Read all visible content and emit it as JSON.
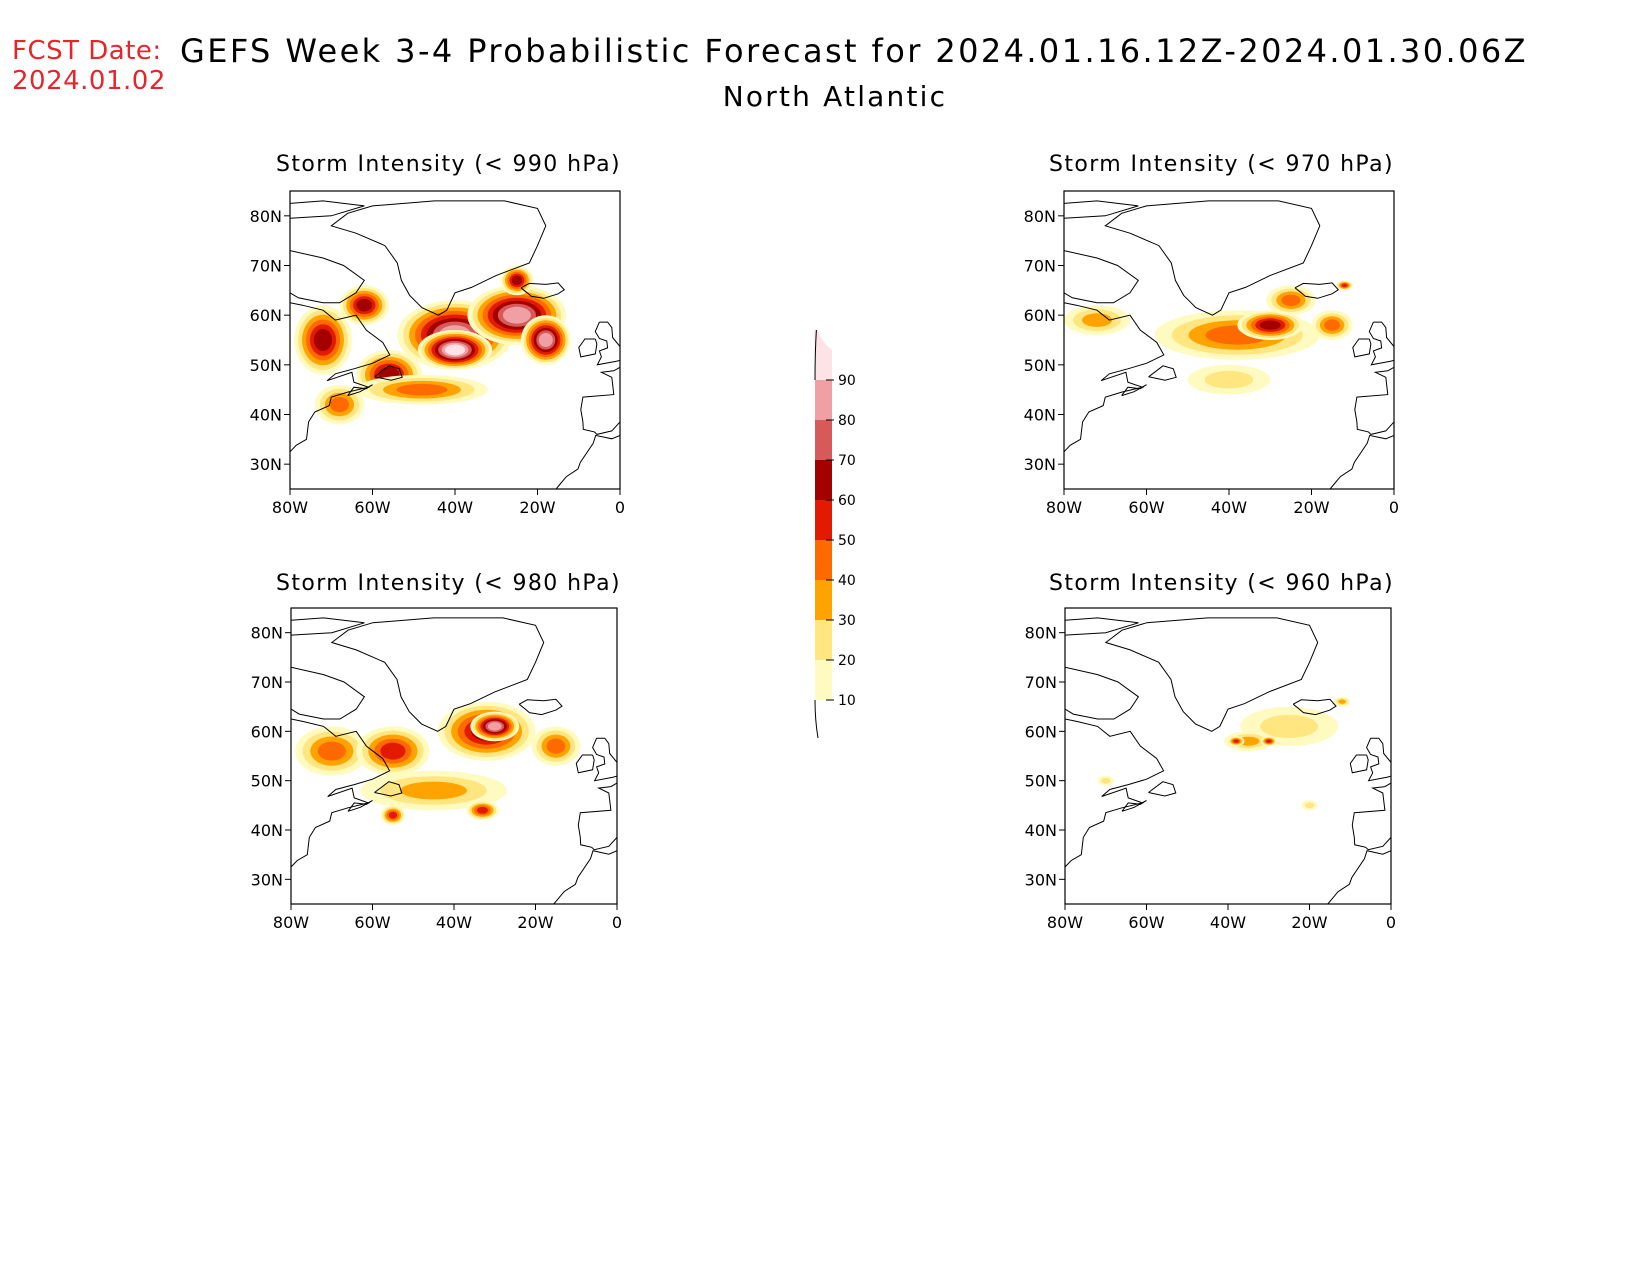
{
  "header": {
    "fcst_label": "FCST Date:",
    "fcst_date": "2024.01.02",
    "title": "GEFS Week 3-4 Probabilistic Forecast for 2024.01.16.12Z-2024.01.30.06Z",
    "subtitle": "North Atlantic"
  },
  "axes": {
    "lon_ticks": [
      "80W",
      "60W",
      "40W",
      "20W",
      "0"
    ],
    "lat_ticks": [
      "80N",
      "70N",
      "60N",
      "50N",
      "40N",
      "30N"
    ],
    "lon_range": [
      -80,
      0
    ],
    "lat_range": [
      25,
      85
    ]
  },
  "colorbar": {
    "levels": [
      "10",
      "20",
      "30",
      "40",
      "50",
      "60",
      "70",
      "80",
      "90"
    ],
    "colors": [
      "#fffbc0",
      "#ffe680",
      "#ffa300",
      "#ff6a00",
      "#e21a00",
      "#a50000",
      "#d75a5a",
      "#f0a0a5",
      "#fde2e6"
    ]
  },
  "panels": [
    {
      "title": "Storm Intensity (< 990 hPa)",
      "blobs": [
        {
          "lon": -72,
          "lat": 55,
          "rx": 7,
          "ry": 7,
          "level": 5
        },
        {
          "lon": -62,
          "lat": 62,
          "rx": 6,
          "ry": 4,
          "level": 5
        },
        {
          "lon": -56,
          "lat": 48,
          "rx": 8,
          "ry": 5,
          "level": 5
        },
        {
          "lon": -40,
          "lat": 56,
          "rx": 14,
          "ry": 7,
          "level": 7
        },
        {
          "lon": -25,
          "lat": 60,
          "rx": 12,
          "ry": 6,
          "level": 7
        },
        {
          "lon": -40,
          "lat": 53,
          "rx": 9,
          "ry": 4,
          "level": 8
        },
        {
          "lon": -18,
          "lat": 55,
          "rx": 6,
          "ry": 5,
          "level": 7
        },
        {
          "lon": -48,
          "lat": 45,
          "rx": 16,
          "ry": 3,
          "level": 3
        },
        {
          "lon": -68,
          "lat": 42,
          "rx": 6,
          "ry": 4,
          "level": 3
        },
        {
          "lon": -25,
          "lat": 67,
          "rx": 4,
          "ry": 3,
          "level": 5
        }
      ]
    },
    {
      "title": "Storm Intensity (< 970 hPa)",
      "blobs": [
        {
          "lon": -72,
          "lat": 59,
          "rx": 8,
          "ry": 3,
          "level": 2
        },
        {
          "lon": -38,
          "lat": 56,
          "rx": 20,
          "ry": 5,
          "level": 3
        },
        {
          "lon": -30,
          "lat": 58,
          "rx": 8,
          "ry": 3,
          "level": 5
        },
        {
          "lon": -25,
          "lat": 63,
          "rx": 6,
          "ry": 3,
          "level": 3
        },
        {
          "lon": -15,
          "lat": 58,
          "rx": 5,
          "ry": 3,
          "level": 3
        },
        {
          "lon": -40,
          "lat": 47,
          "rx": 10,
          "ry": 3,
          "level": 1
        },
        {
          "lon": -12,
          "lat": 66,
          "rx": 2,
          "ry": 1,
          "level": 4
        }
      ]
    },
    {
      "title": "Storm Intensity (< 980 hPa)",
      "blobs": [
        {
          "lon": -70,
          "lat": 56,
          "rx": 9,
          "ry": 5,
          "level": 3
        },
        {
          "lon": -55,
          "lat": 56,
          "rx": 9,
          "ry": 5,
          "level": 4
        },
        {
          "lon": -32,
          "lat": 60,
          "rx": 12,
          "ry": 6,
          "level": 5
        },
        {
          "lon": -30,
          "lat": 61,
          "rx": 6,
          "ry": 3,
          "level": 7
        },
        {
          "lon": -15,
          "lat": 57,
          "rx": 6,
          "ry": 4,
          "level": 3
        },
        {
          "lon": -45,
          "lat": 48,
          "rx": 18,
          "ry": 4,
          "level": 2
        },
        {
          "lon": -55,
          "lat": 43,
          "rx": 3,
          "ry": 2,
          "level": 4
        },
        {
          "lon": -33,
          "lat": 44,
          "rx": 4,
          "ry": 2,
          "level": 4
        }
      ]
    },
    {
      "title": "Storm Intensity (< 960 hPa)",
      "blobs": [
        {
          "lon": -25,
          "lat": 61,
          "rx": 12,
          "ry": 4,
          "level": 1
        },
        {
          "lon": -35,
          "lat": 58,
          "rx": 6,
          "ry": 2,
          "level": 2
        },
        {
          "lon": -30,
          "lat": 58,
          "rx": 2,
          "ry": 1,
          "level": 4
        },
        {
          "lon": -38,
          "lat": 58,
          "rx": 2,
          "ry": 1,
          "level": 4
        },
        {
          "lon": -70,
          "lat": 50,
          "rx": 2,
          "ry": 1,
          "level": 1
        },
        {
          "lon": -20,
          "lat": 45,
          "rx": 2,
          "ry": 1,
          "level": 1
        },
        {
          "lon": -12,
          "lat": 66,
          "rx": 2,
          "ry": 1,
          "level": 2
        }
      ]
    }
  ]
}
